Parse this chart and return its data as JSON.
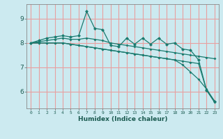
{
  "title": "",
  "xlabel": "Humidex (Indice chaleur)",
  "ylabel": "",
  "bg_color": "#cceaf0",
  "grid_color": "#e8a0a0",
  "line_color": "#1a7a6e",
  "x": [
    0,
    1,
    2,
    3,
    4,
    5,
    6,
    7,
    8,
    9,
    10,
    11,
    12,
    13,
    14,
    15,
    16,
    17,
    18,
    19,
    20,
    21,
    22,
    23
  ],
  "series1": [
    8.0,
    8.1,
    8.2,
    8.25,
    8.3,
    8.25,
    8.3,
    9.3,
    8.6,
    8.55,
    7.9,
    7.85,
    8.2,
    7.95,
    8.2,
    7.95,
    8.2,
    7.95,
    8.0,
    7.75,
    7.7,
    7.3,
    6.05,
    5.6
  ],
  "series2": [
    8.0,
    8.05,
    8.1,
    8.15,
    8.2,
    8.15,
    8.15,
    8.2,
    8.15,
    8.1,
    8.0,
    7.95,
    7.9,
    7.85,
    7.8,
    7.75,
    7.7,
    7.65,
    7.6,
    7.55,
    7.5,
    7.45,
    7.4,
    7.35
  ],
  "series3": [
    8.0,
    8.0,
    8.0,
    8.0,
    8.0,
    7.95,
    7.9,
    7.85,
    7.8,
    7.75,
    7.7,
    7.65,
    7.6,
    7.55,
    7.5,
    7.45,
    7.4,
    7.35,
    7.3,
    7.25,
    7.2,
    7.15,
    6.05,
    5.55
  ],
  "series4": [
    8.0,
    8.0,
    8.0,
    8.0,
    8.0,
    7.95,
    7.9,
    7.85,
    7.8,
    7.75,
    7.7,
    7.65,
    7.6,
    7.55,
    7.5,
    7.45,
    7.4,
    7.35,
    7.3,
    7.1,
    6.8,
    6.5,
    6.1,
    5.6
  ],
  "ylim": [
    5.3,
    9.6
  ],
  "yticks": [
    6,
    7,
    8,
    9
  ],
  "xticks": [
    0,
    1,
    2,
    3,
    4,
    5,
    6,
    7,
    8,
    9,
    10,
    11,
    12,
    13,
    14,
    15,
    16,
    17,
    18,
    19,
    20,
    21,
    22,
    23
  ]
}
